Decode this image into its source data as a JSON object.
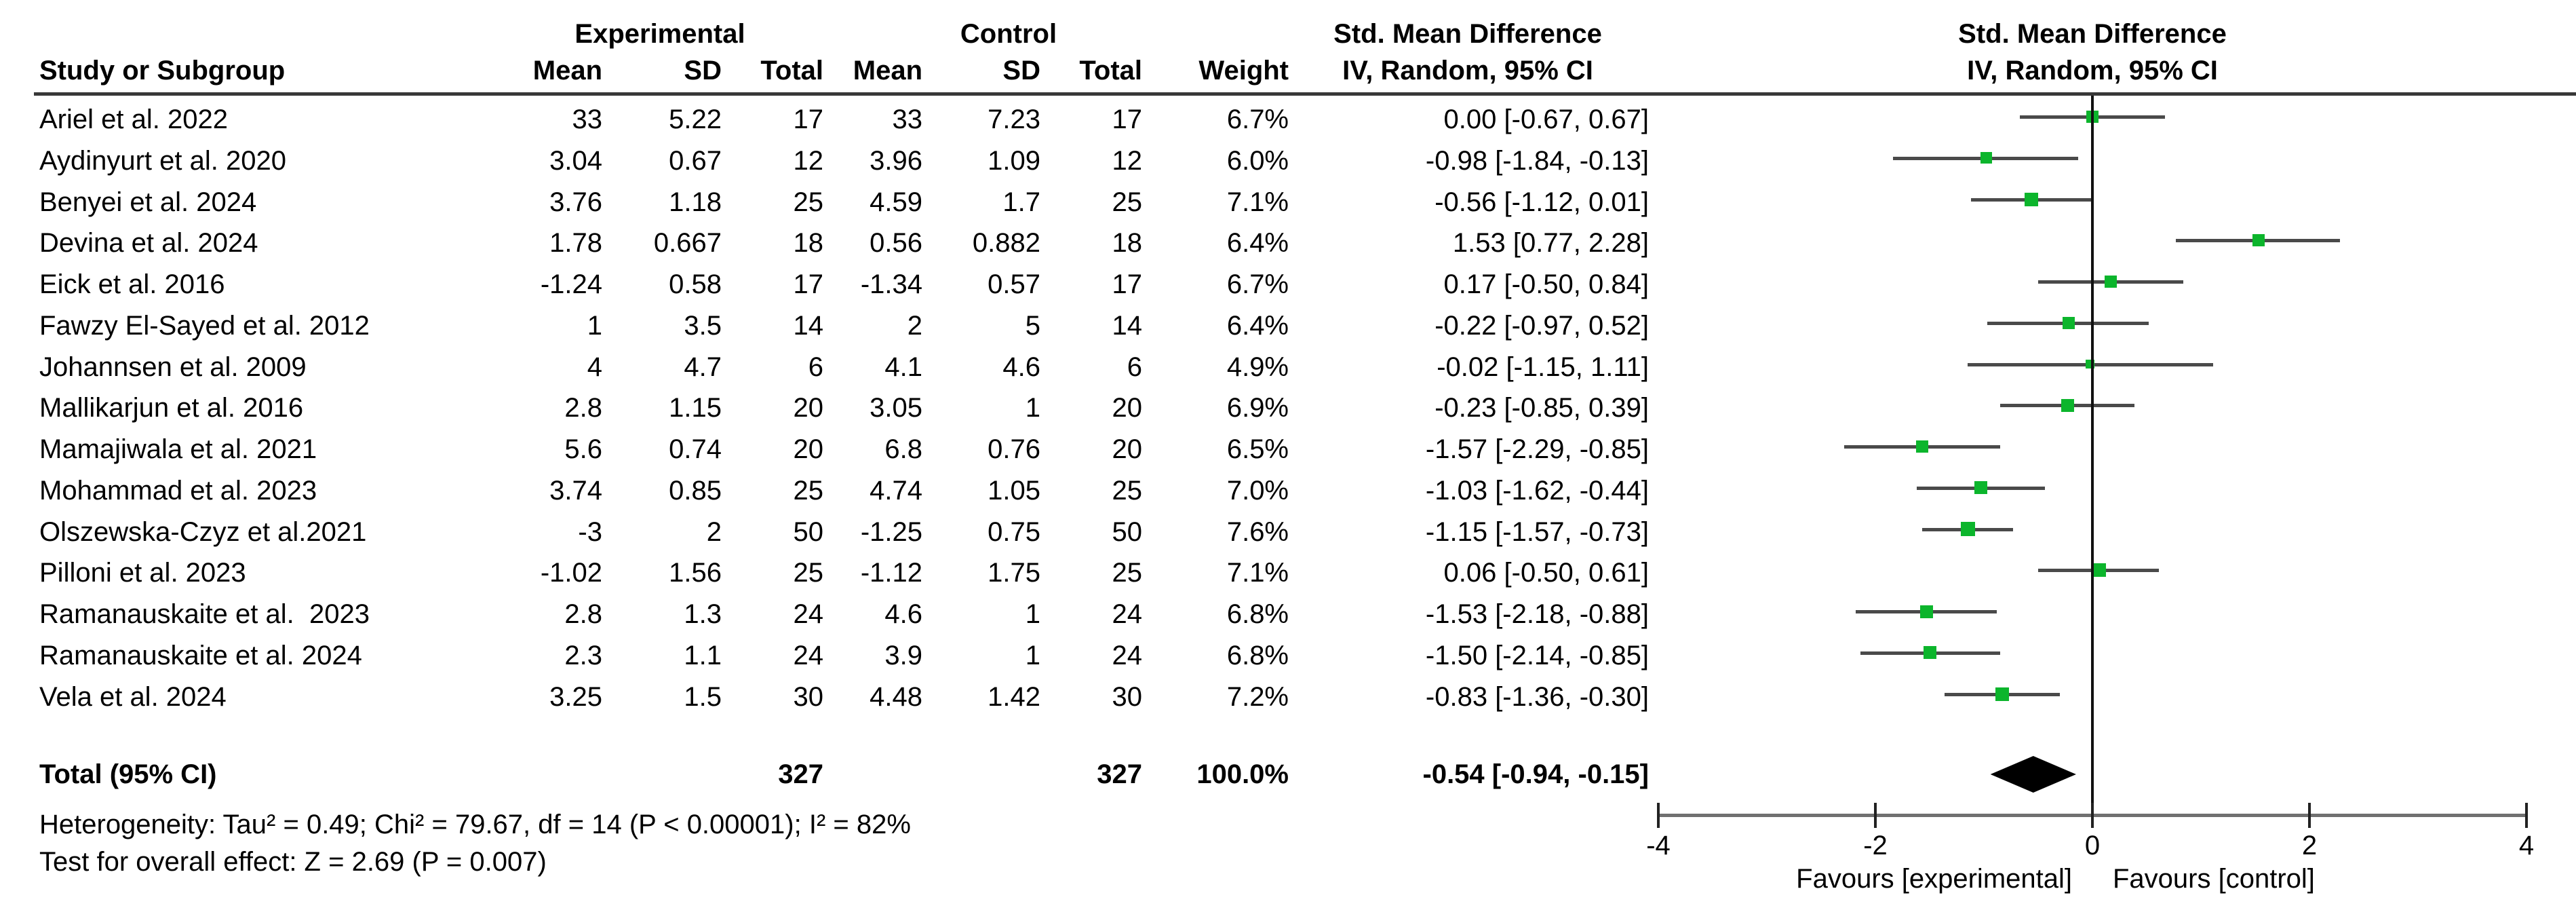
{
  "header": {
    "study_col": "Study or Subgroup",
    "group_experimental": "Experimental",
    "group_control": "Control",
    "sub_cols": {
      "mean": "Mean",
      "sd": "SD",
      "total": "Total",
      "weight": "Weight"
    },
    "effect_col_line1": "Std. Mean Difference",
    "effect_col_line2": "IV, Random, 95% CI",
    "plot_col_line1": "Std. Mean Difference",
    "plot_col_line2": "IV, Random, 95% CI"
  },
  "chart_data": {
    "type": "scatter",
    "variant": "forest-plot-meta-analysis",
    "effect_measure": "Std. Mean Difference, IV, Random, 95% CI",
    "x_axis": {
      "ticks": [
        -4,
        -2,
        0,
        2,
        4
      ],
      "xlim": [
        -4,
        4
      ],
      "zero_line": 0,
      "label_left": "Favours [experimental]",
      "label_right": "Favours [control]"
    },
    "studies": [
      {
        "name": "Ariel et al. 2022",
        "exp_mean": "33",
        "exp_sd": "5.22",
        "exp_total": "17",
        "ctrl_mean": "33",
        "ctrl_sd": "7.23",
        "ctrl_total": "17",
        "weight": "6.7%",
        "smd": "0.00 [-0.67, 0.67]",
        "est": 0.0,
        "lo": -0.67,
        "hi": 0.67
      },
      {
        "name": "Aydinyurt et al. 2020",
        "exp_mean": "3.04",
        "exp_sd": "0.67",
        "exp_total": "12",
        "ctrl_mean": "3.96",
        "ctrl_sd": "1.09",
        "ctrl_total": "12",
        "weight": "6.0%",
        "smd": "-0.98 [-1.84, -0.13]",
        "est": -0.98,
        "lo": -1.84,
        "hi": -0.13
      },
      {
        "name": "Benyei et al. 2024",
        "exp_mean": "3.76",
        "exp_sd": "1.18",
        "exp_total": "25",
        "ctrl_mean": "4.59",
        "ctrl_sd": "1.7",
        "ctrl_total": "25",
        "weight": "7.1%",
        "smd": "-0.56 [-1.12, 0.01]",
        "est": -0.56,
        "lo": -1.12,
        "hi": 0.01
      },
      {
        "name": "Devina et al. 2024",
        "exp_mean": "1.78",
        "exp_sd": "0.667",
        "exp_total": "18",
        "ctrl_mean": "0.56",
        "ctrl_sd": "0.882",
        "ctrl_total": "18",
        "weight": "6.4%",
        "smd": "1.53 [0.77, 2.28]",
        "est": 1.53,
        "lo": 0.77,
        "hi": 2.28
      },
      {
        "name": "Eick et al. 2016",
        "exp_mean": "-1.24",
        "exp_sd": "0.58",
        "exp_total": "17",
        "ctrl_mean": "-1.34",
        "ctrl_sd": "0.57",
        "ctrl_total": "17",
        "weight": "6.7%",
        "smd": "0.17 [-0.50, 0.84]",
        "est": 0.17,
        "lo": -0.5,
        "hi": 0.84
      },
      {
        "name": "Fawzy El-Sayed et al. 2012",
        "exp_mean": "1",
        "exp_sd": "3.5",
        "exp_total": "14",
        "ctrl_mean": "2",
        "ctrl_sd": "5",
        "ctrl_total": "14",
        "weight": "6.4%",
        "smd": "-0.22 [-0.97, 0.52]",
        "est": -0.22,
        "lo": -0.97,
        "hi": 0.52
      },
      {
        "name": "Johannsen et al. 2009",
        "exp_mean": "4",
        "exp_sd": "4.7",
        "exp_total": "6",
        "ctrl_mean": "4.1",
        "ctrl_sd": "4.6",
        "ctrl_total": "6",
        "weight": "4.9%",
        "smd": "-0.02 [-1.15, 1.11]",
        "est": -0.02,
        "lo": -1.15,
        "hi": 1.11
      },
      {
        "name": "Mallikarjun et al. 2016",
        "exp_mean": "2.8",
        "exp_sd": "1.15",
        "exp_total": "20",
        "ctrl_mean": "3.05",
        "ctrl_sd": "1",
        "ctrl_total": "20",
        "weight": "6.9%",
        "smd": "-0.23 [-0.85, 0.39]",
        "est": -0.23,
        "lo": -0.85,
        "hi": 0.39
      },
      {
        "name": "Mamajiwala et al. 2021",
        "exp_mean": "5.6",
        "exp_sd": "0.74",
        "exp_total": "20",
        "ctrl_mean": "6.8",
        "ctrl_sd": "0.76",
        "ctrl_total": "20",
        "weight": "6.5%",
        "smd": "-1.57 [-2.29, -0.85]",
        "est": -1.57,
        "lo": -2.29,
        "hi": -0.85
      },
      {
        "name": "Mohammad et al. 2023",
        "exp_mean": "3.74",
        "exp_sd": "0.85",
        "exp_total": "25",
        "ctrl_mean": "4.74",
        "ctrl_sd": "1.05",
        "ctrl_total": "25",
        "weight": "7.0%",
        "smd": "-1.03 [-1.62, -0.44]",
        "est": -1.03,
        "lo": -1.62,
        "hi": -0.44
      },
      {
        "name": "Olszewska-Czyz et al.2021",
        "exp_mean": "-3",
        "exp_sd": "2",
        "exp_total": "50",
        "ctrl_mean": "-1.25",
        "ctrl_sd": "0.75",
        "ctrl_total": "50",
        "weight": "7.6%",
        "smd": "-1.15 [-1.57, -0.73]",
        "est": -1.15,
        "lo": -1.57,
        "hi": -0.73
      },
      {
        "name": "Pilloni et al. 2023",
        "exp_mean": "-1.02",
        "exp_sd": "1.56",
        "exp_total": "25",
        "ctrl_mean": "-1.12",
        "ctrl_sd": "1.75",
        "ctrl_total": "25",
        "weight": "7.1%",
        "smd": "0.06 [-0.50, 0.61]",
        "est": 0.06,
        "lo": -0.5,
        "hi": 0.61
      },
      {
        "name": "Ramanauskaite et al.  2023",
        "exp_mean": "2.8",
        "exp_sd": "1.3",
        "exp_total": "24",
        "ctrl_mean": "4.6",
        "ctrl_sd": "1",
        "ctrl_total": "24",
        "weight": "6.8%",
        "smd": "-1.53 [-2.18, -0.88]",
        "est": -1.53,
        "lo": -2.18,
        "hi": -0.88
      },
      {
        "name": "Ramanauskaite et al. 2024",
        "exp_mean": "2.3",
        "exp_sd": "1.1",
        "exp_total": "24",
        "ctrl_mean": "3.9",
        "ctrl_sd": "1",
        "ctrl_total": "24",
        "weight": "6.8%",
        "smd": "-1.50 [-2.14, -0.85]",
        "est": -1.5,
        "lo": -2.14,
        "hi": -0.85
      },
      {
        "name": "Vela et al. 2024",
        "exp_mean": "3.25",
        "exp_sd": "1.5",
        "exp_total": "30",
        "ctrl_mean": "4.48",
        "ctrl_sd": "1.42",
        "ctrl_total": "30",
        "weight": "7.2%",
        "smd": "-0.83 [-1.36, -0.30]",
        "est": -0.83,
        "lo": -1.36,
        "hi": -0.3
      }
    ],
    "total": {
      "label": "Total (95% CI)",
      "exp_total": "327",
      "ctrl_total": "327",
      "weight": "100.0%",
      "smd": "-0.54 [-0.94, -0.15]",
      "est": -0.54,
      "lo": -0.94,
      "hi": -0.15
    },
    "heterogeneity": "Heterogeneity: Tau² = 0.49; Chi² = 79.67, df = 14 (P < 0.00001); I² = 82%",
    "overall_effect": "Test for overall effect: Z = 2.69 (P = 0.007)"
  },
  "colors": {
    "marker_green": "#0cb52c",
    "diamond_black": "#000000",
    "ci_line": "#4a4a4a",
    "zero_line": "#111111",
    "axis_line": "#707070",
    "header_rule": "#383838",
    "text": "#000000"
  }
}
